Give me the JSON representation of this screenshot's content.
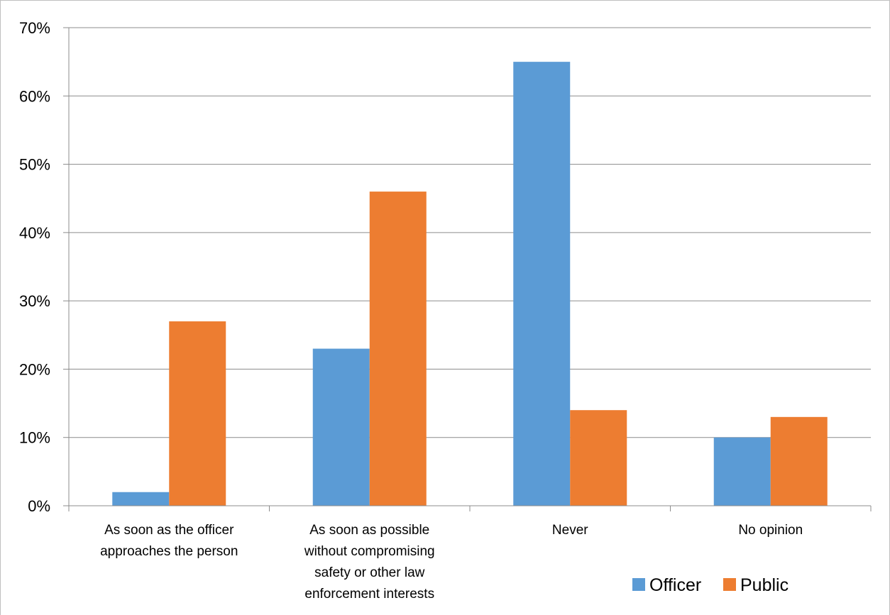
{
  "chart_data": {
    "type": "bar",
    "categories": [
      "As soon as the officer approaches the person",
      "As soon as possible without compromising safety or other law enforcement interests",
      "Never",
      "No opinion"
    ],
    "category_lines": [
      [
        "As soon as the officer",
        "approaches the person"
      ],
      [
        "As soon as possible",
        "without compromising",
        "safety or other law",
        "enforcement interests"
      ],
      [
        "Never"
      ],
      [
        "No opinion"
      ]
    ],
    "series": [
      {
        "name": "Officer",
        "color": "#5b9bd5",
        "values": [
          2,
          23,
          65,
          10
        ]
      },
      {
        "name": "Public",
        "color": "#ed7d31",
        "values": [
          27,
          46,
          14,
          13
        ]
      }
    ],
    "yticks": [
      "0%",
      "10%",
      "20%",
      "30%",
      "40%",
      "50%",
      "60%",
      "70%"
    ],
    "ylim": [
      0,
      70
    ],
    "title": "",
    "xlabel": "",
    "ylabel": "",
    "grid": true,
    "legend_position": "bottom-right"
  }
}
